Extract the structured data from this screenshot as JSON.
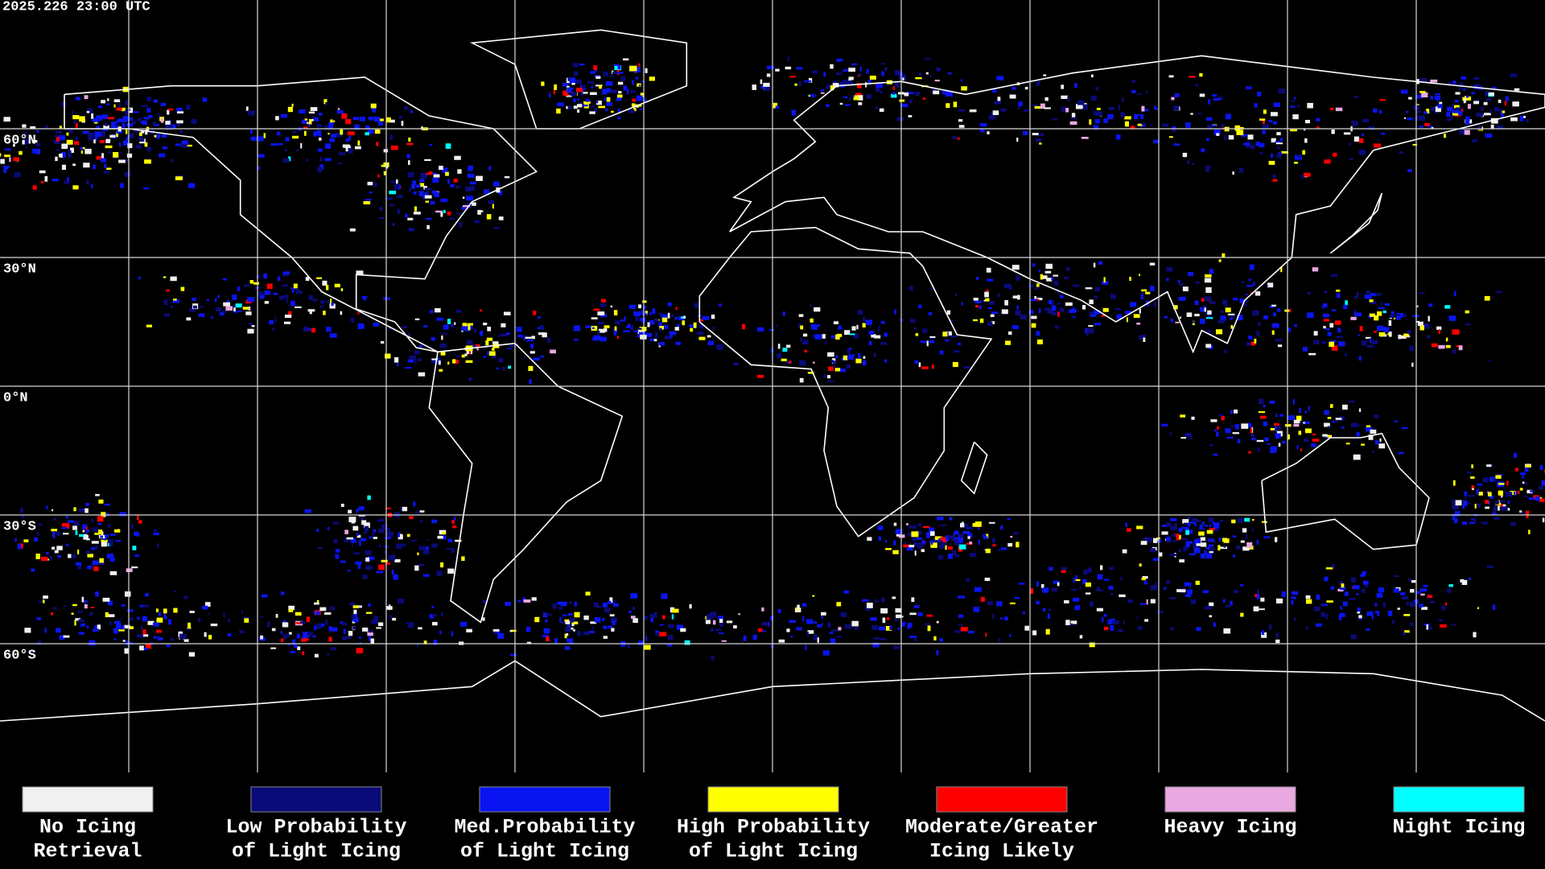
{
  "header": {
    "timestamp": "2025.226 23:00 UTC"
  },
  "map": {
    "latitude_labels": [
      "60°N",
      "30°N",
      "0°N",
      "30°S",
      "60°S"
    ]
  },
  "legend": {
    "items": [
      {
        "lines": [
          "No Icing",
          "Retrieval"
        ],
        "color": "#f0f0f0"
      },
      {
        "lines": [
          "Low Probability",
          "of Light Icing"
        ],
        "color": "#0a0a78"
      },
      {
        "lines": [
          "Med.Probability",
          "of Light Icing"
        ],
        "color": "#0a14f0"
      },
      {
        "lines": [
          "High Probability",
          "of Light Icing"
        ],
        "color": "#ffff00"
      },
      {
        "lines": [
          "Moderate/Greater",
          "Icing Likely"
        ],
        "color": "#ff0000"
      },
      {
        "lines": [
          "Heavy Icing"
        ],
        "color": "#e8a8e0"
      },
      {
        "lines": [
          "Night Icing"
        ],
        "color": "#00ffff"
      }
    ]
  }
}
